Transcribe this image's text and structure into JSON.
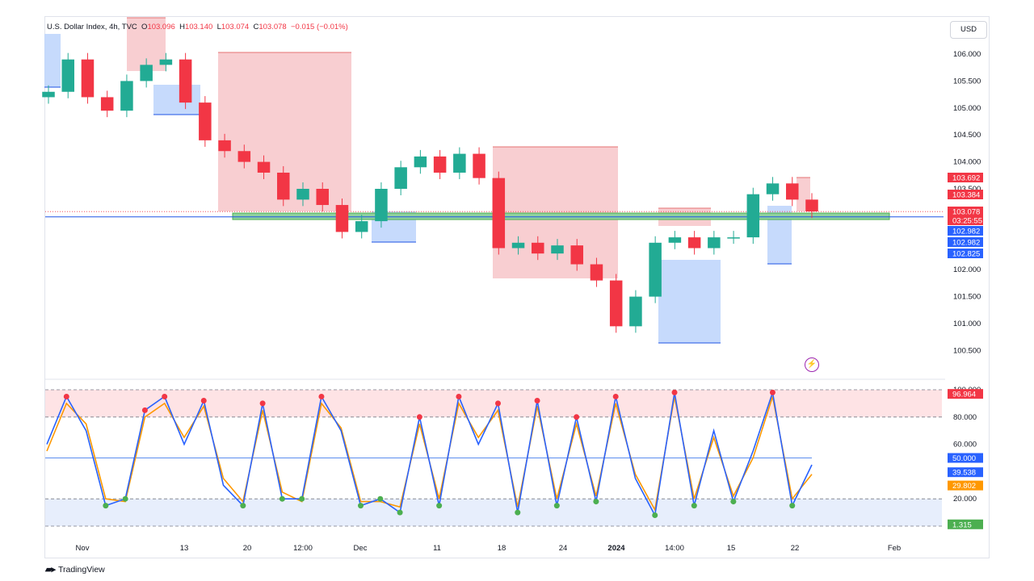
{
  "header": {
    "symbol": "U.S. Dollar Index, 4h, TVC",
    "open_label": "O",
    "open": "103.096",
    "high_label": "H",
    "high": "103.140",
    "low_label": "L",
    "low": "103.074",
    "close_label": "C",
    "close": "103.078",
    "change": "−0.015 (−0.01%)"
  },
  "currency_button": "USD",
  "footer": {
    "brand": "TradingView"
  },
  "colors": {
    "up": "#22ab94",
    "down": "#f23645",
    "supply_zone": "#f7c5c9",
    "demand_zone": "#bcd3fb",
    "support_band": "#8fd19e",
    "stoch_k": "#2962ff",
    "stoch_d": "#ff9800",
    "price_badge": "#f23645",
    "blue_badge": "#2962ff",
    "green_badge": "#22ab94"
  },
  "icons": [
    "bolt-icon",
    "tradingview-logo-icon"
  ],
  "chart_data": [
    {
      "type": "candlestick",
      "title": "U.S. Dollar Index, 4h, TVC",
      "ylim": [
        100.5,
        106.0
      ],
      "y_ticks": [
        "106.000",
        "105.500",
        "105.000",
        "104.500",
        "104.000",
        "103.500",
        "102.000",
        "101.500",
        "101.000",
        "100.500"
      ],
      "x_ticks": [
        "Nov",
        "13",
        "20",
        "12:00",
        "Dec",
        "11",
        "18",
        "24",
        "2024",
        "14:00",
        "15",
        "22",
        "Feb"
      ],
      "series": [
        {
          "name": "price",
          "close": [
            105.3,
            105.9,
            105.2,
            104.95,
            105.5,
            105.8,
            105.9,
            105.1,
            104.4,
            104.2,
            104.0,
            103.8,
            103.3,
            103.5,
            103.2,
            102.7,
            102.9,
            103.5,
            103.9,
            104.1,
            103.8,
            104.15,
            103.7,
            102.4,
            102.5,
            102.3,
            102.45,
            102.1,
            101.8,
            100.95,
            101.5,
            102.5,
            102.6,
            102.4,
            102.6,
            102.6,
            103.4,
            103.6,
            103.3,
            103.08
          ]
        }
      ],
      "price_labels": [
        "103.692",
        "103.384",
        "103.078",
        "03:25:55",
        "102.982",
        "102.982",
        "102.825"
      ],
      "support_level": 102.98,
      "support_band": [
        102.93,
        103.05
      ]
    },
    {
      "type": "line",
      "title": "Stochastic",
      "ylim": [
        0,
        100
      ],
      "y_ticks": [
        "100.000",
        "80.000",
        "60.000",
        "20.000"
      ],
      "levels": [
        80,
        50,
        20
      ],
      "series": [
        {
          "name": "%K",
          "values": [
            60,
            95,
            70,
            15,
            20,
            85,
            95,
            60,
            92,
            30,
            15,
            90,
            20,
            20,
            95,
            70,
            15,
            20,
            10,
            80,
            15,
            95,
            60,
            90,
            10,
            92,
            15,
            80,
            18,
            95,
            35,
            8,
            98,
            15,
            70,
            18,
            55,
            98,
            15,
            45
          ]
        },
        {
          "name": "%D",
          "values": [
            55,
            90,
            75,
            20,
            18,
            80,
            90,
            65,
            88,
            35,
            18,
            85,
            25,
            18,
            90,
            72,
            18,
            18,
            14,
            75,
            20,
            90,
            65,
            85,
            14,
            88,
            20,
            75,
            22,
            90,
            38,
            12,
            95,
            20,
            65,
            22,
            50,
            95,
            20,
            38
          ]
        }
      ],
      "value_labels": [
        "96.964",
        "50.000",
        "39.538",
        "29.802",
        "1.315"
      ]
    }
  ]
}
